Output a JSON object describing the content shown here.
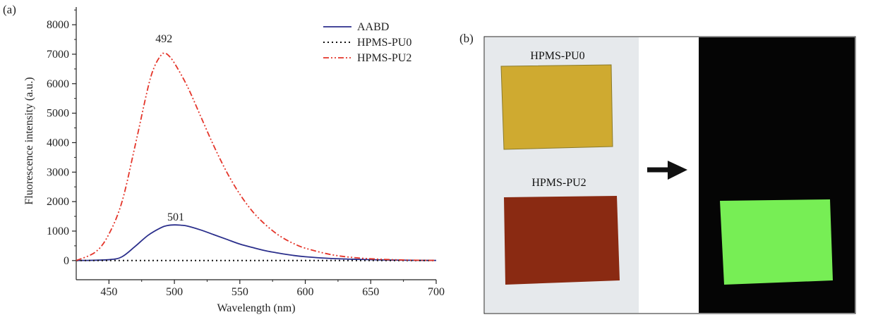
{
  "panel_a": {
    "label": "(a)",
    "annotations": [
      {
        "text": "492",
        "x": 492,
        "y": 7550
      },
      {
        "text": "501",
        "x": 501,
        "y": 1500
      }
    ]
  },
  "panel_b": {
    "label": "(b)",
    "sample_top_label": "HPMS-PU0",
    "sample_bottom_label": "HPMS-PU2",
    "colors": {
      "background_photo": "#e6e9ec",
      "sample_top": "#cfaa30",
      "sample_bottom": "#8a2a12",
      "dark_background": "#050505",
      "fluorescent": "#77ee55",
      "arrow": "#111111"
    }
  },
  "chart_data": {
    "type": "line",
    "title": "",
    "xlabel": "Wavelength (nm)",
    "ylabel": "Fluorescence intensity (a.u.)",
    "xlim": [
      425,
      700
    ],
    "ylim": [
      -650,
      8600
    ],
    "xticks": [
      450,
      500,
      550,
      600,
      650,
      700
    ],
    "yticks": [
      0,
      1000,
      2000,
      3000,
      4000,
      5000,
      6000,
      7000,
      8000
    ],
    "grid": false,
    "legend_position": "top-right",
    "series": [
      {
        "name": "AABD",
        "color": "#2b2f8c",
        "style": "solid",
        "x": [
          425,
          450,
          460,
          470,
          480,
          490,
          495,
          500,
          505,
          510,
          520,
          530,
          540,
          550,
          560,
          570,
          580,
          590,
          600,
          620,
          640,
          660,
          680,
          700
        ],
        "y": [
          0,
          30,
          130,
          480,
          860,
          1120,
          1190,
          1210,
          1200,
          1170,
          1040,
          880,
          720,
          560,
          440,
          330,
          250,
          180,
          130,
          70,
          40,
          20,
          10,
          5
        ]
      },
      {
        "name": "HPMS-PU0",
        "color": "#111111",
        "style": "dotted",
        "x": [
          425,
          450,
          500,
          550,
          600,
          650,
          700
        ],
        "y": [
          0,
          0,
          0,
          0,
          0,
          0,
          0
        ]
      },
      {
        "name": "HPMS-PU2",
        "color": "#e4352a",
        "style": "dashdot",
        "x": [
          425,
          440,
          450,
          460,
          470,
          480,
          485,
          490,
          492,
          495,
          500,
          510,
          520,
          530,
          540,
          550,
          560,
          570,
          580,
          590,
          600,
          620,
          640,
          660,
          680,
          700
        ],
        "y": [
          0,
          300,
          900,
          2000,
          3900,
          5900,
          6600,
          6980,
          7030,
          6980,
          6700,
          5900,
          4900,
          3900,
          3000,
          2250,
          1650,
          1200,
          850,
          600,
          420,
          200,
          90,
          40,
          15,
          5
        ]
      }
    ]
  }
}
